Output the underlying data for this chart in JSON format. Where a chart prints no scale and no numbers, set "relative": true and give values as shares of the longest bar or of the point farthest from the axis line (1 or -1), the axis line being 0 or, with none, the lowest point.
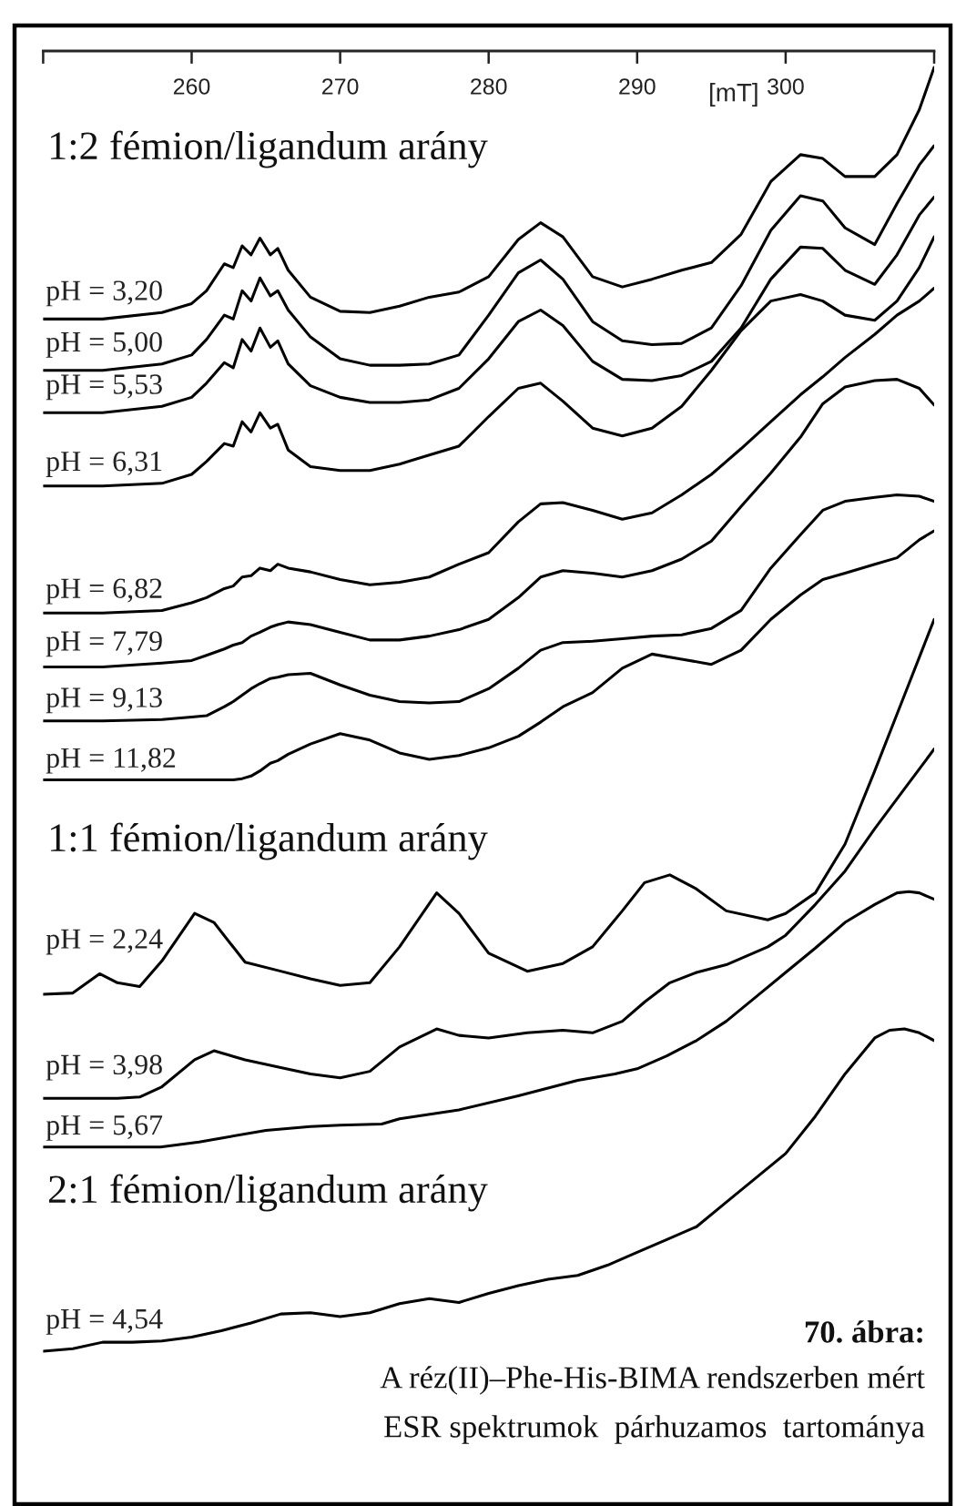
{
  "chart_data": {
    "type": "line",
    "relative": true,
    "tick_labels": "x",
    "line_style": "solid",
    "marker": "none",
    "xlabel": "[mT]",
    "xlim": [
      250,
      310
    ],
    "xticks": [
      {
        "value": 250,
        "label": null
      },
      260,
      270,
      280,
      290,
      300,
      {
        "value": 310,
        "label": null
      }
    ],
    "x": [
      250,
      254,
      258,
      260,
      261,
      262.2,
      262.8,
      263.4,
      264,
      264.6,
      265.3,
      265.8,
      266.5,
      268,
      270,
      272,
      274,
      276,
      278,
      280,
      282,
      283.5,
      285,
      287,
      289,
      291,
      293,
      295,
      297,
      299,
      301,
      302.5,
      304,
      306,
      307.5,
      309,
      310
    ],
    "annotations": [
      "1:2 fémion/ligandum arány",
      "1:1 fémion/ligandum arány",
      "2:1 fémion/ligandum arány",
      "70. ábra:",
      "A réz(II)–Phe-His-BIMA rendszerben mért",
      "ESR spektrumok  párhuzamos  tartománya"
    ],
    "series": [
      {
        "name": "pH = 3,20",
        "color": "#000000",
        "values": [
          0.804,
          0.804,
          0.809,
          0.816,
          0.826,
          0.847,
          0.844,
          0.861,
          0.854,
          0.867,
          0.854,
          0.859,
          0.842,
          0.821,
          0.81,
          0.809,
          0.814,
          0.821,
          0.825,
          0.837,
          0.866,
          0.879,
          0.868,
          0.837,
          0.829,
          0.835,
          0.842,
          0.848,
          0.87,
          0.911,
          0.932,
          0.929,
          0.915,
          0.915,
          0.932,
          0.967,
          1.0
        ]
      },
      {
        "name": "pH = 5,00",
        "color": "#000000",
        "values": [
          0.764,
          0.764,
          0.769,
          0.776,
          0.788,
          0.807,
          0.804,
          0.826,
          0.818,
          0.836,
          0.822,
          0.826,
          0.811,
          0.79,
          0.773,
          0.768,
          0.768,
          0.769,
          0.776,
          0.807,
          0.84,
          0.85,
          0.835,
          0.802,
          0.787,
          0.784,
          0.785,
          0.797,
          0.83,
          0.873,
          0.9,
          0.896,
          0.875,
          0.862,
          0.894,
          0.924,
          0.939
        ]
      },
      {
        "name": "pH = 5,53",
        "color": "#000000",
        "values": [
          0.731,
          0.731,
          0.736,
          0.743,
          0.754,
          0.77,
          0.766,
          0.788,
          0.779,
          0.797,
          0.782,
          0.787,
          0.769,
          0.752,
          0.743,
          0.739,
          0.739,
          0.741,
          0.75,
          0.773,
          0.802,
          0.811,
          0.799,
          0.771,
          0.757,
          0.756,
          0.76,
          0.771,
          0.797,
          0.835,
          0.86,
          0.859,
          0.842,
          0.831,
          0.854,
          0.885,
          0.899
        ]
      },
      {
        "name": "pH = 6,31",
        "color": "#000000",
        "values": [
          0.674,
          0.674,
          0.676,
          0.683,
          0.693,
          0.707,
          0.705,
          0.724,
          0.716,
          0.731,
          0.719,
          0.722,
          0.702,
          0.689,
          0.686,
          0.686,
          0.691,
          0.698,
          0.705,
          0.728,
          0.75,
          0.754,
          0.74,
          0.719,
          0.713,
          0.719,
          0.736,
          0.764,
          0.795,
          0.818,
          0.823,
          0.818,
          0.807,
          0.803,
          0.818,
          0.844,
          0.868
        ]
      },
      {
        "name": "pH = 6,82",
        "color": "#000000",
        "values": [
          0.575,
          0.575,
          0.577,
          0.583,
          0.587,
          0.594,
          0.596,
          0.603,
          0.604,
          0.61,
          0.608,
          0.613,
          0.61,
          0.607,
          0.601,
          0.597,
          0.599,
          0.603,
          0.613,
          0.622,
          0.646,
          0.66,
          0.661,
          0.655,
          0.648,
          0.653,
          0.667,
          0.683,
          0.703,
          0.724,
          0.745,
          0.759,
          0.774,
          0.792,
          0.807,
          0.818,
          0.828
        ]
      },
      {
        "name": "pH = 7,79",
        "color": "#000000",
        "values": [
          0.533,
          0.533,
          0.536,
          0.538,
          0.542,
          0.547,
          0.55,
          0.552,
          0.557,
          0.56,
          0.564,
          0.566,
          0.568,
          0.566,
          0.56,
          0.554,
          0.554,
          0.557,
          0.562,
          0.57,
          0.587,
          0.603,
          0.608,
          0.606,
          0.603,
          0.608,
          0.617,
          0.631,
          0.658,
          0.684,
          0.712,
          0.738,
          0.751,
          0.756,
          0.757,
          0.75,
          0.737
        ]
      },
      {
        "name": "pH = 9,13",
        "color": "#000000",
        "values": [
          0.491,
          0.491,
          0.492,
          0.494,
          0.495,
          0.502,
          0.506,
          0.511,
          0.516,
          0.52,
          0.524,
          0.525,
          0.527,
          0.528,
          0.519,
          0.511,
          0.506,
          0.505,
          0.506,
          0.516,
          0.532,
          0.546,
          0.552,
          0.553,
          0.555,
          0.557,
          0.558,
          0.563,
          0.577,
          0.61,
          0.636,
          0.655,
          0.662,
          0.665,
          0.667,
          0.666,
          0.662
        ]
      },
      {
        "name": "pH = 11,82",
        "color": "#000000",
        "values": [
          0.445,
          0.445,
          0.445,
          0.445,
          0.445,
          0.445,
          0.445,
          0.446,
          0.448,
          0.452,
          0.458,
          0.46,
          0.465,
          0.473,
          0.481,
          0.476,
          0.466,
          0.461,
          0.464,
          0.47,
          0.479,
          0.49,
          0.502,
          0.513,
          0.532,
          0.543,
          0.539,
          0.535,
          0.546,
          0.57,
          0.589,
          0.601,
          0.606,
          0.613,
          0.618,
          0.632,
          0.639
        ]
      },
      {
        "name": "pH = 2,24",
        "color": "#000000",
        "x": [
          250,
          252,
          253.8,
          255,
          256.5,
          258,
          260.2,
          261.5,
          263.6,
          266,
          268,
          270,
          272,
          274,
          276.5,
          278,
          280,
          282.6,
          285,
          287,
          289,
          290.5,
          292.2,
          294,
          296,
          298.8,
          300,
          302,
          304,
          306,
          308,
          310
        ],
        "values": [
          0.278,
          0.279,
          0.294,
          0.287,
          0.284,
          0.304,
          0.341,
          0.334,
          0.303,
          0.296,
          0.29,
          0.285,
          0.287,
          0.315,
          0.357,
          0.341,
          0.31,
          0.296,
          0.302,
          0.315,
          0.343,
          0.365,
          0.371,
          0.36,
          0.343,
          0.336,
          0.341,
          0.357,
          0.395,
          0.452,
          0.511,
          0.57
        ]
      },
      {
        "name": "pH = 3,98",
        "color": "#000000",
        "x": [
          250,
          252,
          253.8,
          255,
          256.5,
          258,
          260.2,
          261.5,
          263.6,
          266,
          268,
          270,
          272,
          274,
          276.5,
          278,
          280,
          282.6,
          285,
          287,
          289,
          290.5,
          292.2,
          294,
          296,
          298.8,
          300,
          302,
          304,
          306,
          308,
          310
        ],
        "values": [
          0.197,
          0.197,
          0.197,
          0.197,
          0.198,
          0.206,
          0.227,
          0.234,
          0.227,
          0.221,
          0.216,
          0.213,
          0.218,
          0.237,
          0.251,
          0.246,
          0.244,
          0.248,
          0.25,
          0.248,
          0.257,
          0.272,
          0.287,
          0.295,
          0.301,
          0.315,
          0.324,
          0.348,
          0.374,
          0.407,
          0.438,
          0.469
        ]
      },
      {
        "name": "pH = 5,67",
        "color": "#000000",
        "x": [
          250,
          254,
          257.9,
          260.5,
          262,
          265,
          268,
          270,
          272.8,
          274,
          278,
          282,
          286,
          288.5,
          290,
          292,
          294,
          296,
          298,
          300,
          302,
          304,
          306,
          307.5,
          308.3,
          309,
          310
        ],
        "values": [
          0.159,
          0.159,
          0.159,
          0.163,
          0.166,
          0.172,
          0.175,
          0.176,
          0.177,
          0.181,
          0.188,
          0.199,
          0.211,
          0.216,
          0.22,
          0.23,
          0.242,
          0.257,
          0.276,
          0.295,
          0.314,
          0.334,
          0.348,
          0.357,
          0.358,
          0.357,
          0.352
        ]
      },
      {
        "name": "pH = 4,54",
        "color": "#000000",
        "x": [
          250,
          252,
          254,
          256,
          258,
          260,
          262,
          264,
          266,
          268,
          270,
          272,
          274,
          276,
          278,
          280,
          282,
          284,
          286,
          288,
          290,
          292,
          294,
          296,
          298,
          300,
          302,
          304,
          306,
          307,
          308,
          309,
          310
        ],
        "values": [
          0.0,
          0.002,
          0.007,
          0.007,
          0.008,
          0.011,
          0.016,
          0.022,
          0.029,
          0.03,
          0.027,
          0.03,
          0.037,
          0.041,
          0.038,
          0.045,
          0.051,
          0.056,
          0.059,
          0.067,
          0.077,
          0.087,
          0.097,
          0.116,
          0.135,
          0.154,
          0.183,
          0.216,
          0.244,
          0.25,
          0.251,
          0.248,
          0.242
        ]
      }
    ]
  }
}
